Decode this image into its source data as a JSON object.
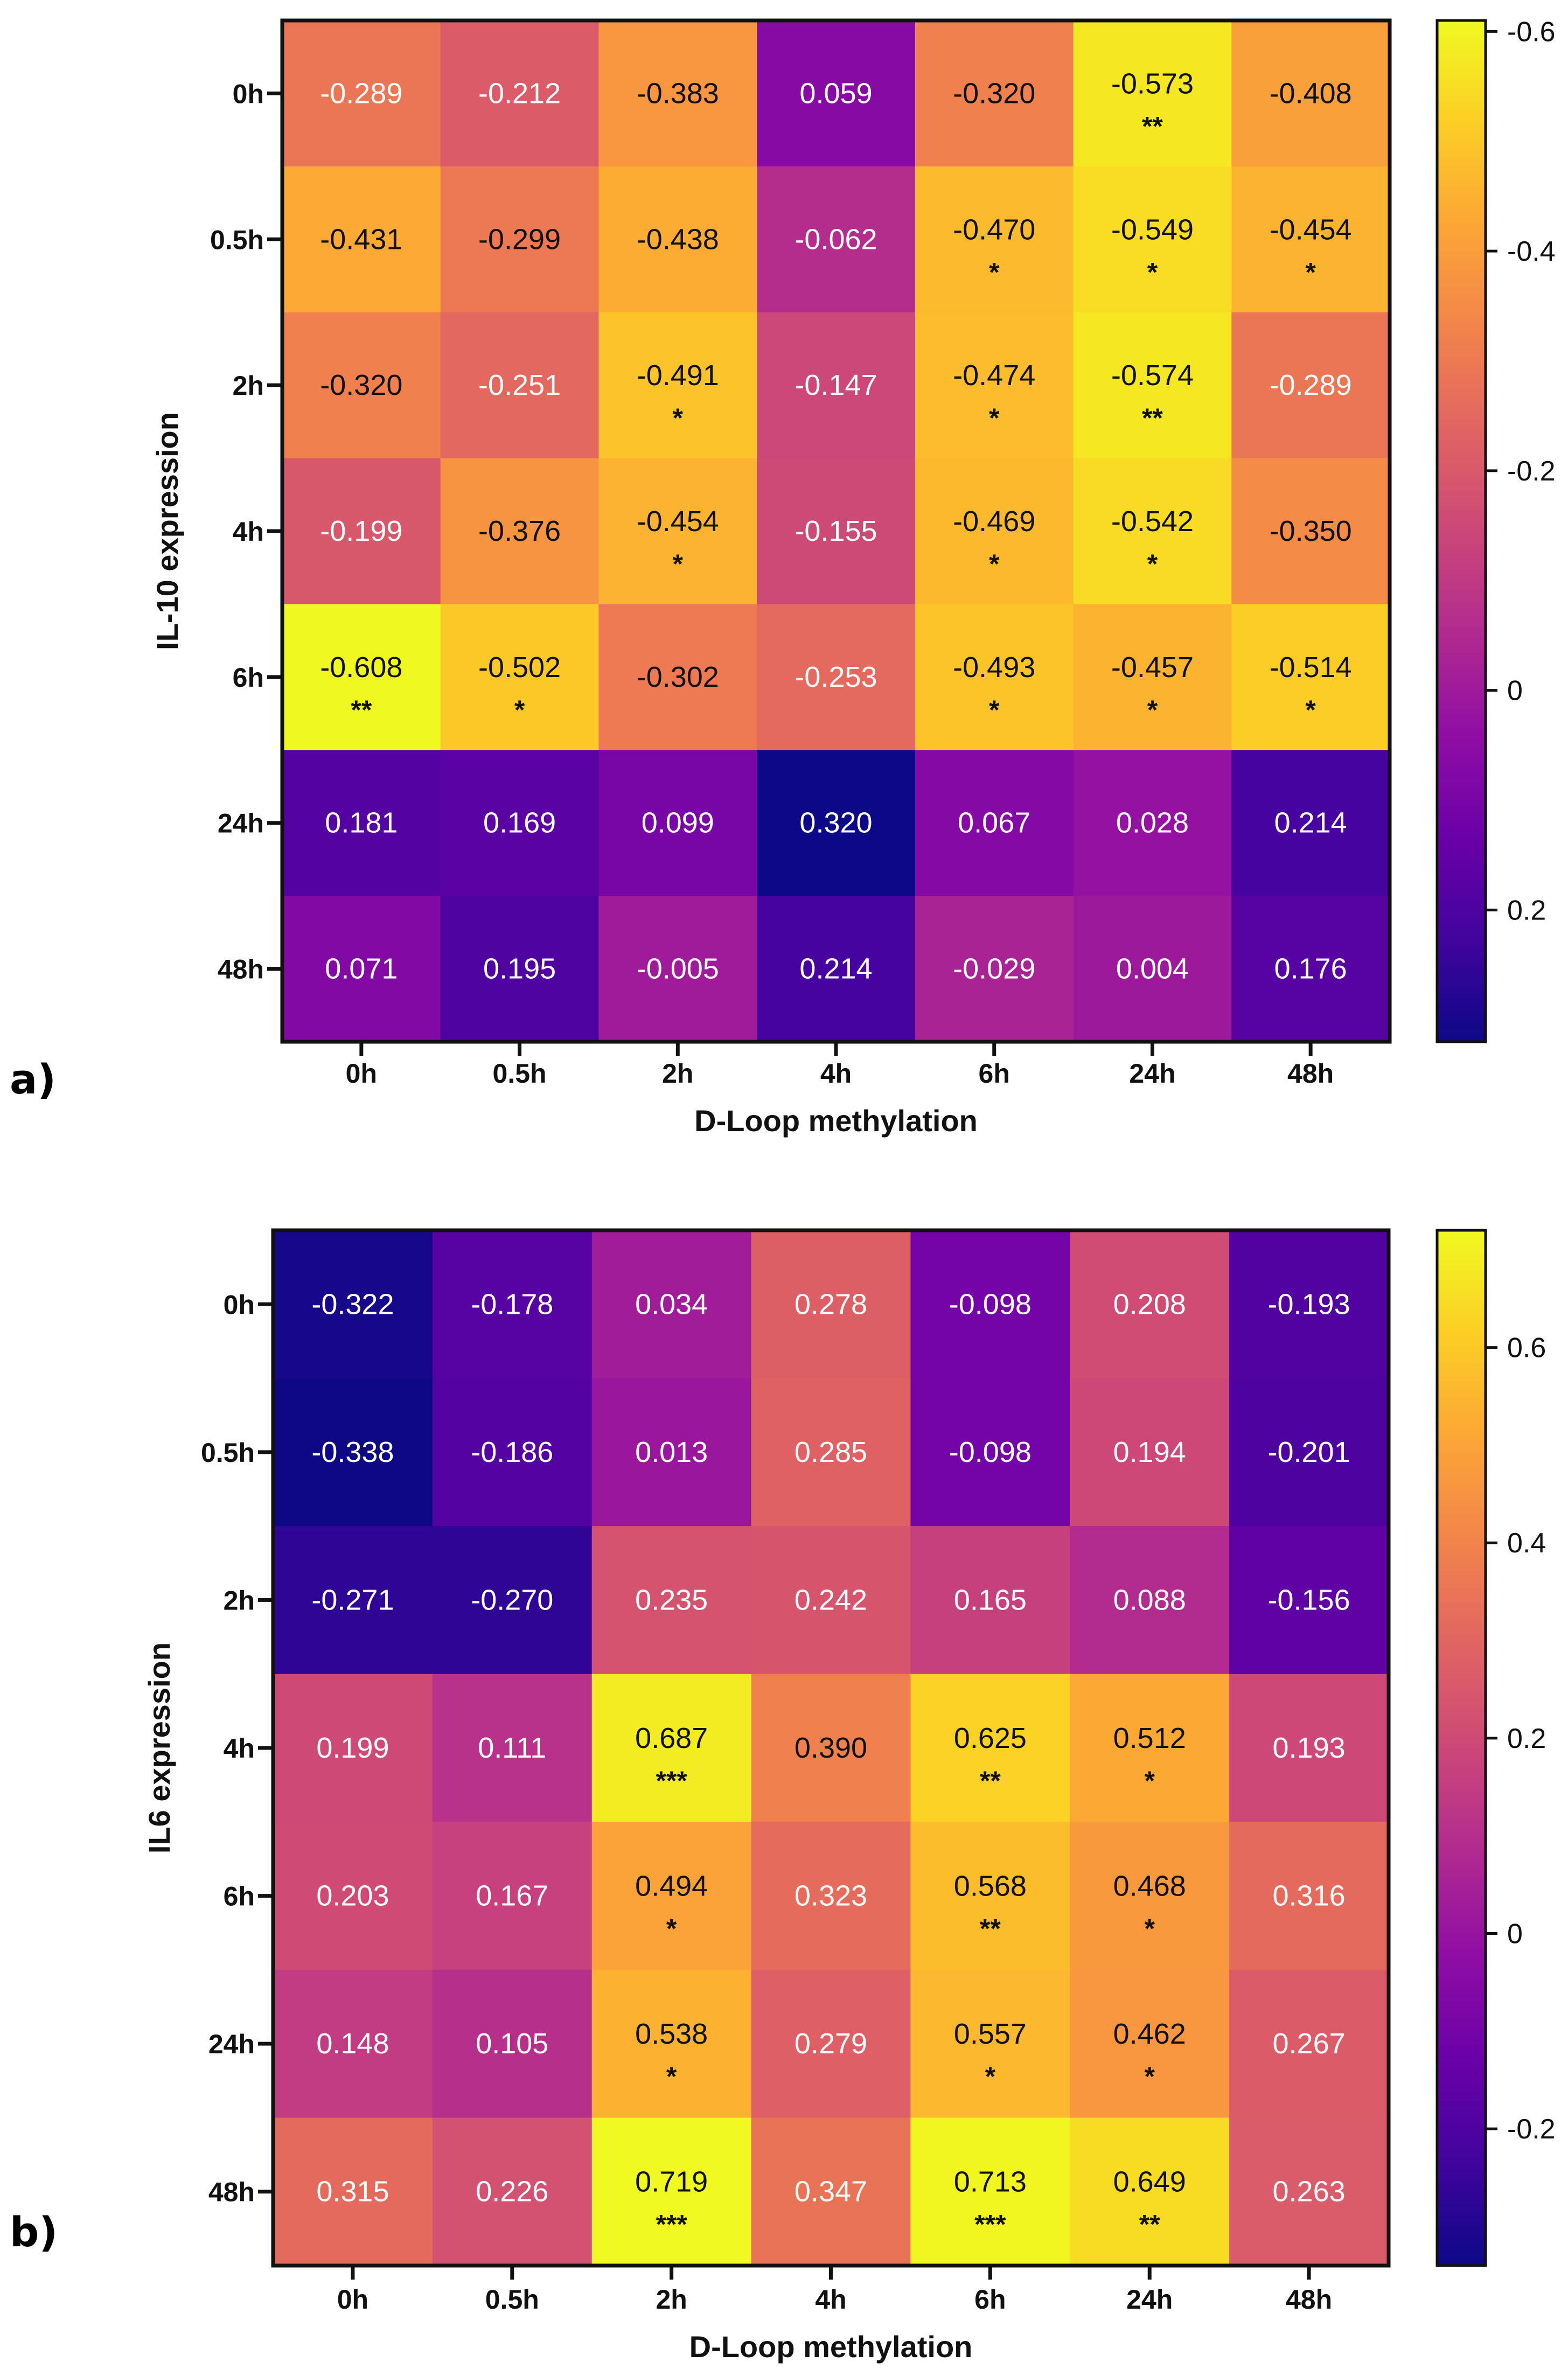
{
  "chart_data": [
    {
      "type": "heatmap",
      "panel_label": "a)",
      "xlabel": "D-Loop methylation",
      "ylabel": "IL-10 expression",
      "x_categories": [
        "0h",
        "0.5h",
        "2h",
        "4h",
        "6h",
        "24h",
        "48h"
      ],
      "y_categories": [
        "0h",
        "0.5h",
        "2h",
        "4h",
        "6h",
        "24h",
        "48h"
      ],
      "values": [
        [
          "-0.289",
          "-0.212",
          "-0.383",
          "0.059",
          "-0.320",
          "-0.573",
          "-0.408"
        ],
        [
          "-0.431",
          "-0.299",
          "-0.438",
          "-0.062",
          "-0.470",
          "-0.549",
          "-0.454"
        ],
        [
          "-0.320",
          "-0.251",
          "-0.491",
          "-0.147",
          "-0.474",
          "-0.574",
          "-0.289"
        ],
        [
          "-0.199",
          "-0.376",
          "-0.454",
          "-0.155",
          "-0.469",
          "-0.542",
          "-0.350"
        ],
        [
          "-0.608",
          "-0.502",
          "-0.302",
          "-0.253",
          "-0.493",
          "-0.457",
          "-0.514"
        ],
        [
          "0.181",
          "0.169",
          "0.099",
          "0.320",
          "0.067",
          "0.028",
          "0.214"
        ],
        [
          "0.071",
          "0.195",
          "-0.005",
          "0.214",
          "-0.029",
          "0.004",
          "0.176"
        ]
      ],
      "significance": [
        [
          "",
          "",
          "",
          "",
          "",
          "**",
          ""
        ],
        [
          "",
          "",
          "",
          "",
          "*",
          "*",
          "*"
        ],
        [
          "",
          "",
          "*",
          "",
          "*",
          "**",
          ""
        ],
        [
          "",
          "",
          "*",
          "",
          "*",
          "*",
          ""
        ],
        [
          "**",
          "*",
          "",
          "",
          "*",
          "*",
          "*"
        ],
        [
          "",
          "",
          "",
          "",
          "",
          "",
          ""
        ],
        [
          "",
          "",
          "",
          "",
          "",
          "",
          ""
        ]
      ],
      "colormap": "plasma",
      "colorbar_reversed": true,
      "color_range": [
        0.32,
        -0.61
      ],
      "colorbar_ticks": [
        "-0.6",
        "-0.4",
        "-0.2",
        "0",
        "0.2"
      ]
    },
    {
      "type": "heatmap",
      "panel_label": "b)",
      "xlabel": "D-Loop methylation",
      "ylabel": "IL6 expression",
      "x_categories": [
        "0h",
        "0.5h",
        "2h",
        "4h",
        "6h",
        "24h",
        "48h"
      ],
      "y_categories": [
        "0h",
        "0.5h",
        "2h",
        "4h",
        "6h",
        "24h",
        "48h"
      ],
      "values": [
        [
          "-0.322",
          "-0.178",
          "0.034",
          "0.278",
          "-0.098",
          "0.208",
          "-0.193"
        ],
        [
          "-0.338",
          "-0.186",
          "0.013",
          "0.285",
          "-0.098",
          "0.194",
          "-0.201"
        ],
        [
          "-0.271",
          "-0.270",
          "0.235",
          "0.242",
          "0.165",
          "0.088",
          "-0.156"
        ],
        [
          "0.199",
          "0.111",
          "0.687",
          "0.390",
          "0.625",
          "0.512",
          "0.193"
        ],
        [
          "0.203",
          "0.167",
          "0.494",
          "0.323",
          "0.568",
          "0.468",
          "0.316"
        ],
        [
          "0.148",
          "0.105",
          "0.538",
          "0.279",
          "0.557",
          "0.462",
          "0.267"
        ],
        [
          "0.315",
          "0.226",
          "0.719",
          "0.347",
          "0.713",
          "0.649",
          "0.263"
        ]
      ],
      "significance": [
        [
          "",
          "",
          "",
          "",
          "",
          "",
          ""
        ],
        [
          "",
          "",
          "",
          "",
          "",
          "",
          ""
        ],
        [
          "",
          "",
          "",
          "",
          "",
          "",
          ""
        ],
        [
          "",
          "",
          "***",
          "",
          "**",
          "*",
          ""
        ],
        [
          "",
          "",
          "*",
          "",
          "**",
          "*",
          ""
        ],
        [
          "",
          "",
          "*",
          "",
          "*",
          "*",
          ""
        ],
        [
          "",
          "",
          "***",
          "",
          "***",
          "**",
          ""
        ]
      ],
      "colormap": "plasma",
      "colorbar_reversed": false,
      "color_range": [
        -0.34,
        0.72
      ],
      "colorbar_ticks": [
        "0.6",
        "0.4",
        "0.2",
        "0",
        "-0.2"
      ]
    }
  ]
}
